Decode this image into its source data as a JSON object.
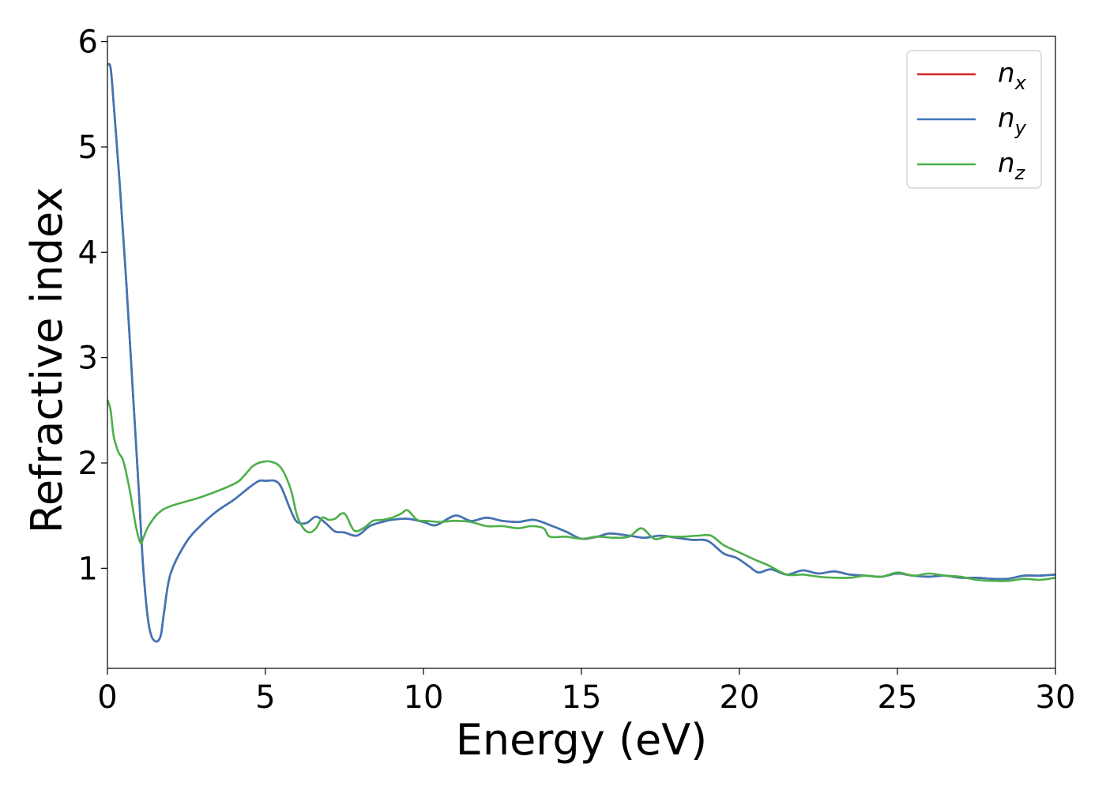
{
  "chart_data": {
    "type": "line",
    "title": "",
    "xlabel": "Energy (eV)",
    "ylabel": "Refractive index",
    "xlim": [
      0,
      30
    ],
    "ylim": [
      0.05,
      6.05
    ],
    "xticks": [
      0,
      5,
      10,
      15,
      20,
      25,
      30
    ],
    "yticks": [
      1,
      2,
      3,
      4,
      5,
      6
    ],
    "grid": false,
    "legend_position": "top-right",
    "series": [
      {
        "name": "n",
        "subscript": "x",
        "color": "#d62728",
        "x": [
          0,
          0.1,
          0.2,
          0.4,
          0.6,
          0.8,
          1.0,
          1.1,
          1.2,
          1.3,
          1.4,
          1.5,
          1.6,
          1.7,
          1.8,
          2.0,
          2.5,
          3.0,
          3.5,
          4.0,
          4.5,
          4.8,
          5.0,
          5.3,
          5.5,
          5.8,
          6.0,
          6.3,
          6.6,
          6.9,
          7.2,
          7.5,
          7.9,
          8.3,
          8.7,
          9.0,
          9.5,
          10.0,
          10.4,
          11.0,
          11.5,
          12.0,
          12.5,
          13.0,
          13.5,
          14.0,
          14.5,
          15.0,
          15.5,
          15.9,
          16.5,
          17.0,
          17.5,
          18.0,
          18.5,
          19.0,
          19.5,
          19.9,
          20.3,
          20.6,
          21.0,
          21.5,
          22.0,
          22.5,
          23.0,
          23.5,
          24.0,
          24.5,
          25.0,
          25.5,
          26.0,
          26.5,
          27.0,
          27.5,
          28.0,
          28.5,
          29.0,
          29.5,
          30.0
        ],
        "y": [
          5.78,
          5.75,
          5.4,
          4.6,
          3.7,
          2.7,
          1.7,
          1.15,
          0.75,
          0.48,
          0.35,
          0.31,
          0.31,
          0.38,
          0.6,
          0.95,
          1.25,
          1.42,
          1.55,
          1.65,
          1.77,
          1.83,
          1.83,
          1.83,
          1.77,
          1.55,
          1.44,
          1.43,
          1.49,
          1.43,
          1.35,
          1.34,
          1.31,
          1.4,
          1.44,
          1.46,
          1.47,
          1.44,
          1.41,
          1.5,
          1.45,
          1.48,
          1.45,
          1.44,
          1.46,
          1.41,
          1.35,
          1.28,
          1.3,
          1.33,
          1.31,
          1.29,
          1.31,
          1.29,
          1.27,
          1.26,
          1.14,
          1.1,
          1.02,
          0.96,
          0.99,
          0.94,
          0.98,
          0.95,
          0.97,
          0.94,
          0.93,
          0.92,
          0.95,
          0.93,
          0.92,
          0.93,
          0.91,
          0.91,
          0.9,
          0.9,
          0.93,
          0.93,
          0.94
        ]
      },
      {
        "name": "n",
        "subscript": "y",
        "color": "#3d76b8",
        "x": [
          0,
          0.1,
          0.2,
          0.4,
          0.6,
          0.8,
          1.0,
          1.1,
          1.2,
          1.3,
          1.4,
          1.5,
          1.6,
          1.7,
          1.8,
          2.0,
          2.5,
          3.0,
          3.5,
          4.0,
          4.5,
          4.8,
          5.0,
          5.3,
          5.5,
          5.8,
          6.0,
          6.3,
          6.6,
          6.9,
          7.2,
          7.5,
          7.9,
          8.3,
          8.7,
          9.0,
          9.5,
          10.0,
          10.4,
          11.0,
          11.5,
          12.0,
          12.5,
          13.0,
          13.5,
          14.0,
          14.5,
          15.0,
          15.5,
          15.9,
          16.5,
          17.0,
          17.5,
          18.0,
          18.5,
          19.0,
          19.5,
          19.9,
          20.3,
          20.6,
          21.0,
          21.5,
          22.0,
          22.5,
          23.0,
          23.5,
          24.0,
          24.5,
          25.0,
          25.5,
          26.0,
          26.5,
          27.0,
          27.5,
          28.0,
          28.5,
          29.0,
          29.5,
          30.0
        ],
        "y": [
          5.78,
          5.75,
          5.4,
          4.6,
          3.7,
          2.7,
          1.7,
          1.15,
          0.75,
          0.48,
          0.35,
          0.31,
          0.31,
          0.38,
          0.6,
          0.95,
          1.25,
          1.42,
          1.55,
          1.65,
          1.77,
          1.83,
          1.83,
          1.83,
          1.77,
          1.55,
          1.44,
          1.43,
          1.49,
          1.43,
          1.35,
          1.34,
          1.31,
          1.4,
          1.44,
          1.46,
          1.47,
          1.44,
          1.41,
          1.5,
          1.45,
          1.48,
          1.45,
          1.44,
          1.46,
          1.41,
          1.35,
          1.28,
          1.3,
          1.33,
          1.31,
          1.29,
          1.31,
          1.29,
          1.27,
          1.26,
          1.14,
          1.1,
          1.02,
          0.96,
          0.99,
          0.94,
          0.98,
          0.95,
          0.97,
          0.94,
          0.93,
          0.92,
          0.95,
          0.93,
          0.92,
          0.93,
          0.91,
          0.91,
          0.9,
          0.9,
          0.93,
          0.93,
          0.94
        ]
      },
      {
        "name": "n",
        "subscript": "z",
        "color": "#4daf4a",
        "x": [
          0,
          0.1,
          0.2,
          0.35,
          0.5,
          0.7,
          0.9,
          1.05,
          1.15,
          1.3,
          1.6,
          2.0,
          3.0,
          4.0,
          4.3,
          4.6,
          4.9,
          5.2,
          5.5,
          5.8,
          6.0,
          6.2,
          6.4,
          6.6,
          6.8,
          7.0,
          7.2,
          7.5,
          7.8,
          8.1,
          8.4,
          8.7,
          9.0,
          9.3,
          9.5,
          9.8,
          10.1,
          10.5,
          11.0,
          11.5,
          12.0,
          12.5,
          13.0,
          13.4,
          13.8,
          14.0,
          14.5,
          15.0,
          15.5,
          16.0,
          16.5,
          16.9,
          17.3,
          17.7,
          18.2,
          18.7,
          19.1,
          19.5,
          20.0,
          20.5,
          20.9,
          21.5,
          22.0,
          22.5,
          23.0,
          23.5,
          24.0,
          24.5,
          25.0,
          25.5,
          26.0,
          26.5,
          27.0,
          27.5,
          28.0,
          28.5,
          29.0,
          29.5,
          30.0
        ],
        "y": [
          2.6,
          2.5,
          2.25,
          2.1,
          2.02,
          1.75,
          1.4,
          1.24,
          1.3,
          1.4,
          1.52,
          1.59,
          1.68,
          1.8,
          1.87,
          1.97,
          2.01,
          2.01,
          1.95,
          1.75,
          1.5,
          1.38,
          1.34,
          1.38,
          1.48,
          1.46,
          1.47,
          1.52,
          1.36,
          1.38,
          1.45,
          1.46,
          1.48,
          1.52,
          1.55,
          1.46,
          1.45,
          1.44,
          1.45,
          1.44,
          1.4,
          1.4,
          1.38,
          1.4,
          1.38,
          1.3,
          1.3,
          1.28,
          1.3,
          1.29,
          1.3,
          1.38,
          1.28,
          1.3,
          1.3,
          1.31,
          1.31,
          1.22,
          1.15,
          1.08,
          1.03,
          0.94,
          0.94,
          0.92,
          0.91,
          0.91,
          0.93,
          0.92,
          0.96,
          0.93,
          0.95,
          0.93,
          0.92,
          0.89,
          0.88,
          0.88,
          0.9,
          0.89,
          0.91
        ]
      }
    ]
  }
}
